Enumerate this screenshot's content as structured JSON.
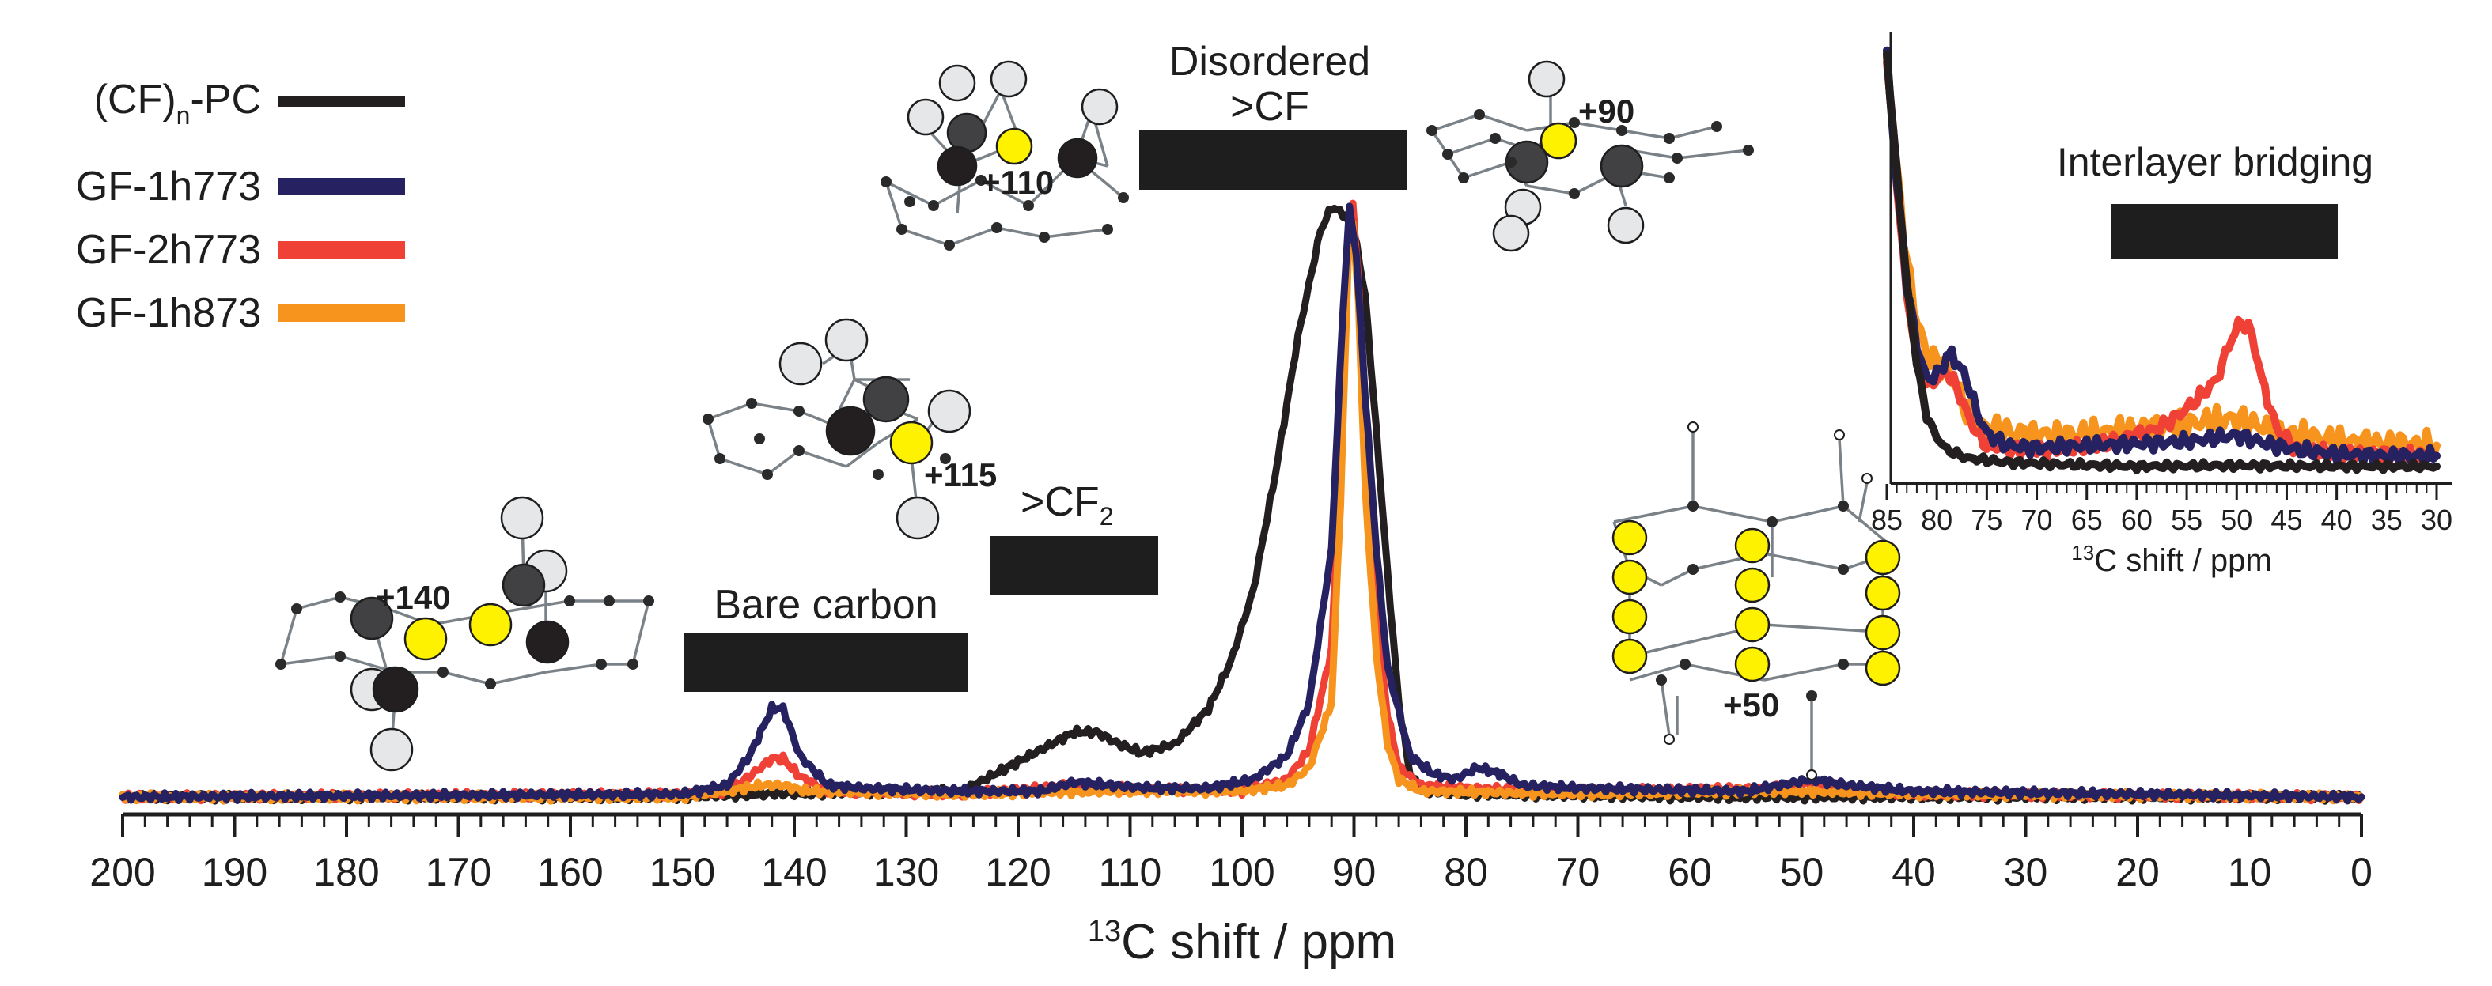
{
  "chart_data": [
    {
      "type": "line",
      "title": "",
      "xlabel_sup": "13",
      "xlabel": "C shift / ppm",
      "ylabel": "",
      "xlim": [
        200,
        0
      ],
      "x_reversed": true,
      "xticks": [
        200,
        190,
        180,
        170,
        160,
        150,
        140,
        130,
        120,
        110,
        100,
        90,
        80,
        70,
        60,
        50,
        40,
        30,
        20,
        10,
        0
      ],
      "legend": [
        {
          "label_parts": [
            "(CF)",
            "n",
            "-PC"
          ],
          "color": "#231f20"
        },
        {
          "label_parts": [
            "GF-1h773"
          ],
          "color": "#262262"
        },
        {
          "label_parts": [
            "GF-2h773"
          ],
          "color": "#ef4136"
        },
        {
          "label_parts": [
            "GF-1h873"
          ],
          "color": "#f7941d"
        }
      ],
      "legend_position": "top-left",
      "series": [
        {
          "name": "(CF)n-PC",
          "color": "#231f20",
          "points": [
            [
              200,
              0
            ],
            [
              150,
              0
            ],
            [
              143,
              0.005
            ],
            [
              125,
              0.01
            ],
            [
              123,
              0.03
            ],
            [
              120,
              0.06
            ],
            [
              117,
              0.09
            ],
            [
              115,
              0.11
            ],
            [
              113,
              0.11
            ],
            [
              111,
              0.09
            ],
            [
              109,
              0.075
            ],
            [
              106,
              0.09
            ],
            [
              103,
              0.15
            ],
            [
              101,
              0.23
            ],
            [
              99,
              0.35
            ],
            [
              97,
              0.55
            ],
            [
              95,
              0.78
            ],
            [
              93,
              0.96
            ],
            [
              92,
              1.0
            ],
            [
              91,
              0.99
            ],
            [
              90,
              0.96
            ],
            [
              89,
              0.85
            ],
            [
              88,
              0.62
            ],
            [
              87,
              0.38
            ],
            [
              86,
              0.16
            ],
            [
              85,
              0.04
            ],
            [
              84,
              0.01
            ],
            [
              80,
              0.005
            ],
            [
              60,
              0
            ],
            [
              0,
              0
            ]
          ]
        },
        {
          "name": "GF-1h773",
          "color": "#262262",
          "points": [
            [
              200,
              0
            ],
            [
              150,
              0.005
            ],
            [
              146,
              0.02
            ],
            [
              144,
              0.07
            ],
            [
              142,
              0.15
            ],
            [
              141,
              0.15
            ],
            [
              139.5,
              0.07
            ],
            [
              137,
              0.02
            ],
            [
              134,
              0.015
            ],
            [
              125,
              0.01
            ],
            [
              118,
              0.01
            ],
            [
              115,
              0.025
            ],
            [
              112,
              0.02
            ],
            [
              108,
              0.015
            ],
            [
              103,
              0.015
            ],
            [
              99,
              0.03
            ],
            [
              96,
              0.07
            ],
            [
              94,
              0.16
            ],
            [
              92,
              0.42
            ],
            [
              91,
              0.82
            ],
            [
              90.4,
              1.0
            ],
            [
              89.8,
              0.92
            ],
            [
              89,
              0.68
            ],
            [
              88,
              0.42
            ],
            [
              87,
              0.22
            ],
            [
              85,
              0.07
            ],
            [
              83,
              0.04
            ],
            [
              81,
              0.03
            ],
            [
              79,
              0.05
            ],
            [
              77,
              0.04
            ],
            [
              75,
              0.02
            ],
            [
              70,
              0.015
            ],
            [
              55,
              0.01
            ],
            [
              52,
              0.02
            ],
            [
              49,
              0.03
            ],
            [
              46,
              0.02
            ],
            [
              40,
              0.01
            ],
            [
              0,
              0
            ]
          ]
        },
        {
          "name": "GF-2h773",
          "color": "#ef4136",
          "points": [
            [
              200,
              0
            ],
            [
              150,
              0.005
            ],
            [
              146,
              0.01
            ],
            [
              144,
              0.035
            ],
            [
              142,
              0.065
            ],
            [
              141,
              0.065
            ],
            [
              139.5,
              0.035
            ],
            [
              137,
              0.01
            ],
            [
              125,
              0.005
            ],
            [
              115,
              0.02
            ],
            [
              112,
              0.015
            ],
            [
              100,
              0.01
            ],
            [
              96,
              0.03
            ],
            [
              94,
              0.08
            ],
            [
              92,
              0.25
            ],
            [
              91.2,
              0.58
            ],
            [
              90.5,
              0.96
            ],
            [
              90.1,
              1.0
            ],
            [
              89.6,
              0.88
            ],
            [
              89,
              0.6
            ],
            [
              88,
              0.3
            ],
            [
              87,
              0.14
            ],
            [
              86,
              0.05
            ],
            [
              84,
              0.02
            ],
            [
              80,
              0.015
            ],
            [
              70,
              0.01
            ],
            [
              52,
              0.015
            ],
            [
              49,
              0.025
            ],
            [
              46,
              0.015
            ],
            [
              40,
              0.005
            ],
            [
              0,
              0
            ]
          ]
        },
        {
          "name": "GF-1h873",
          "color": "#f7941d",
          "points": [
            [
              200,
              0
            ],
            [
              150,
              0
            ],
            [
              146,
              0.01
            ],
            [
              143,
              0.02
            ],
            [
              141,
              0.02
            ],
            [
              139,
              0.01
            ],
            [
              125,
              0.005
            ],
            [
              112,
              0.01
            ],
            [
              100,
              0.01
            ],
            [
              96,
              0.02
            ],
            [
              94,
              0.05
            ],
            [
              92,
              0.16
            ],
            [
              91.2,
              0.5
            ],
            [
              90.5,
              0.92
            ],
            [
              90.1,
              0.97
            ],
            [
              89.6,
              0.84
            ],
            [
              89,
              0.52
            ],
            [
              88,
              0.24
            ],
            [
              87,
              0.09
            ],
            [
              86,
              0.03
            ],
            [
              84,
              0.01
            ],
            [
              70,
              0.005
            ],
            [
              50,
              0.01
            ],
            [
              40,
              0.005
            ],
            [
              0,
              0
            ]
          ]
        }
      ],
      "annotations": [
        {
          "text": "Disordered",
          "near_ppm": 90
        },
        {
          "text": ">CF",
          "near_ppm": 90
        },
        {
          "text_parts": [
            ">CF",
            "2"
          ],
          "near_ppm": 115
        },
        {
          "text": "Bare carbon",
          "near_ppm": 141
        },
        {
          "text": "+110",
          "kind": "structure-label"
        },
        {
          "text": "+90",
          "kind": "structure-label"
        },
        {
          "text": "+115",
          "kind": "structure-label"
        },
        {
          "text": "+140",
          "kind": "structure-label"
        },
        {
          "text": "+50",
          "kind": "structure-label"
        }
      ]
    },
    {
      "type": "line",
      "role": "inset",
      "title": "Interlayer bridging",
      "xlabel_sup": "13",
      "xlabel": "C shift / ppm",
      "xlim": [
        85,
        30
      ],
      "x_reversed": true,
      "xticks": [
        85,
        80,
        75,
        70,
        65,
        60,
        55,
        50,
        45,
        40,
        35,
        30
      ],
      "series": [
        {
          "name": "(CF)n-PC",
          "color": "#231f20",
          "points": [
            [
              85,
              1.0
            ],
            [
              84,
              0.72
            ],
            [
              83,
              0.45
            ],
            [
              82,
              0.26
            ],
            [
              81,
              0.13
            ],
            [
              80,
              0.08
            ],
            [
              79,
              0.05
            ],
            [
              77,
              0.03
            ],
            [
              73,
              0.02
            ],
            [
              68,
              0.015
            ],
            [
              60,
              0.01
            ],
            [
              50,
              0.012
            ],
            [
              40,
              0.01
            ],
            [
              30,
              0.01
            ]
          ]
        },
        {
          "name": "GF-1h773",
          "color": "#262262",
          "points": [
            [
              85,
              1.0
            ],
            [
              84,
              0.7
            ],
            [
              83,
              0.45
            ],
            [
              82,
              0.3
            ],
            [
              81,
              0.22
            ],
            [
              80,
              0.23
            ],
            [
              79,
              0.27
            ],
            [
              78.5,
              0.28
            ],
            [
              77,
              0.22
            ],
            [
              76,
              0.14
            ],
            [
              75,
              0.09
            ],
            [
              73,
              0.06
            ],
            [
              70,
              0.055
            ],
            [
              65,
              0.06
            ],
            [
              60,
              0.065
            ],
            [
              55,
              0.07
            ],
            [
              50,
              0.085
            ],
            [
              47,
              0.065
            ],
            [
              44,
              0.05
            ],
            [
              40,
              0.04
            ],
            [
              35,
              0.035
            ],
            [
              30,
              0.035
            ]
          ]
        },
        {
          "name": "GF-2h773",
          "color": "#ef4136",
          "points": [
            [
              85,
              1.0
            ],
            [
              84,
              0.7
            ],
            [
              83,
              0.42
            ],
            [
              82,
              0.28
            ],
            [
              81,
              0.2
            ],
            [
              80,
              0.22
            ],
            [
              79,
              0.24
            ],
            [
              78,
              0.2
            ],
            [
              77,
              0.14
            ],
            [
              76,
              0.09
            ],
            [
              75,
              0.06
            ],
            [
              72,
              0.05
            ],
            [
              68,
              0.05
            ],
            [
              64,
              0.06
            ],
            [
              61,
              0.08
            ],
            [
              58,
              0.1
            ],
            [
              56,
              0.13
            ],
            [
              54,
              0.17
            ],
            [
              52,
              0.22
            ],
            [
              50.5,
              0.32
            ],
            [
              49.5,
              0.36
            ],
            [
              48.5,
              0.33
            ],
            [
              47.5,
              0.22
            ],
            [
              46,
              0.1
            ],
            [
              44,
              0.05
            ],
            [
              40,
              0.04
            ],
            [
              35,
              0.04
            ],
            [
              30,
              0.035
            ]
          ]
        },
        {
          "name": "GF-1h873",
          "color": "#f7941d",
          "points": [
            [
              85,
              1.0
            ],
            [
              84,
              0.72
            ],
            [
              83,
              0.5
            ],
            [
              82,
              0.36
            ],
            [
              81,
              0.28
            ],
            [
              80,
              0.26
            ],
            [
              79,
              0.25
            ],
            [
              78,
              0.2
            ],
            [
              77,
              0.14
            ],
            [
              75,
              0.1
            ],
            [
              72,
              0.09
            ],
            [
              68,
              0.085
            ],
            [
              64,
              0.09
            ],
            [
              60,
              0.1
            ],
            [
              56,
              0.11
            ],
            [
              52,
              0.12
            ],
            [
              50,
              0.125
            ],
            [
              48,
              0.11
            ],
            [
              45,
              0.09
            ],
            [
              40,
              0.07
            ],
            [
              35,
              0.065
            ],
            [
              30,
              0.06
            ]
          ]
        }
      ]
    }
  ]
}
